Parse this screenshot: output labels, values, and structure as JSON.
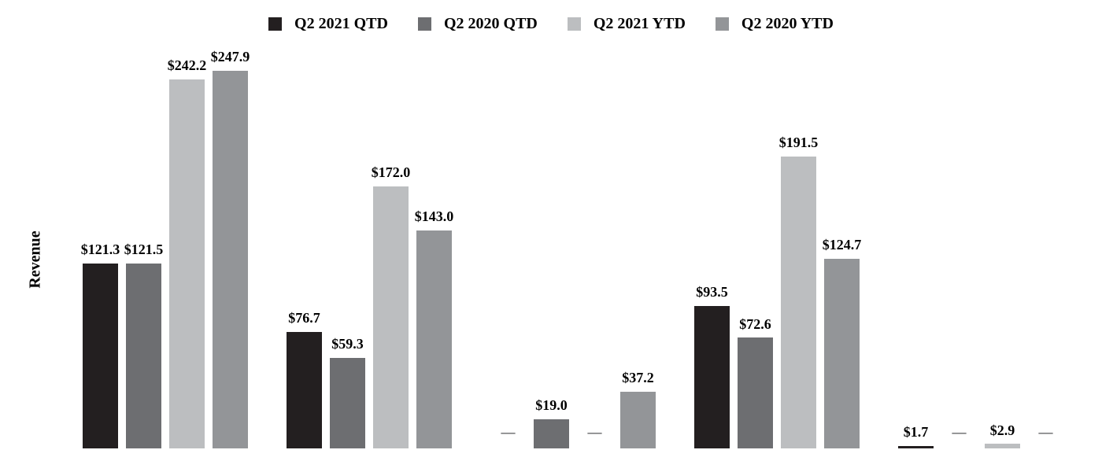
{
  "chart_data": {
    "type": "bar",
    "title": "",
    "ylabel": "Revenue",
    "xlabel": "",
    "legend_position": "top",
    "grid": false,
    "axis_lines_visible": false,
    "x_category_labels_visible": false,
    "num_groups": 5,
    "ylim": [
      0,
      250
    ],
    "null_marker": "—",
    "series": [
      {
        "name": "Q2 2021 QTD",
        "color": "#231f20",
        "values": [
          121.3,
          76.7,
          null,
          93.5,
          1.7
        ],
        "labels": [
          "$121.3",
          "$76.7",
          "—",
          "$93.5",
          "$1.7"
        ]
      },
      {
        "name": "Q2 2020 QTD",
        "color": "#6d6e71",
        "values": [
          121.5,
          59.3,
          19.0,
          72.6,
          null
        ],
        "labels": [
          "$121.5",
          "$59.3",
          "$19.0",
          "$72.6",
          "—"
        ]
      },
      {
        "name": "Q2 2021 YTD",
        "color": "#bcbec0",
        "values": [
          242.2,
          172.0,
          null,
          191.5,
          2.9
        ],
        "labels": [
          "$242.2",
          "$172.0",
          "—",
          "$191.5",
          "$2.9"
        ]
      },
      {
        "name": "Q2 2020 YTD",
        "color": "#939598",
        "values": [
          247.9,
          143.0,
          37.2,
          124.7,
          null
        ],
        "labels": [
          "$247.9",
          "$143.0",
          "$37.2",
          "$124.7",
          "—"
        ]
      }
    ],
    "colors": {
      "label_text": "#000000",
      "null_dash": "#58595b",
      "background": "#ffffff"
    }
  }
}
